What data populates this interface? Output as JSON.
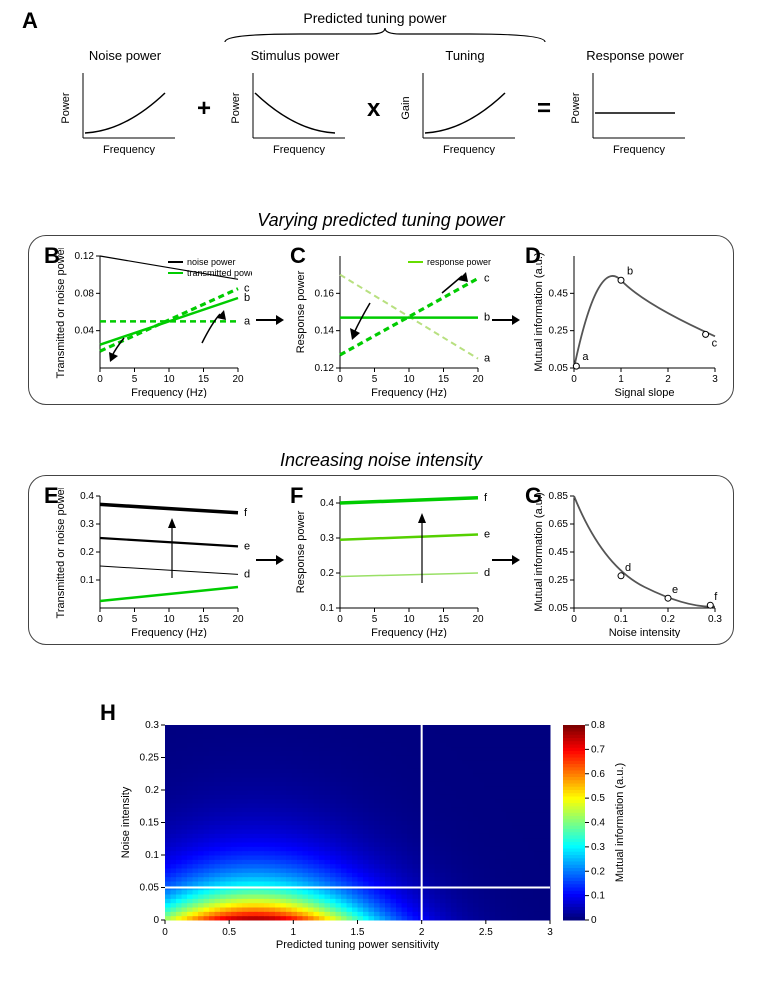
{
  "panelA": {
    "label": "A",
    "top_brace_label": "Predicted tuning power",
    "charts": [
      {
        "title": "Noise power",
        "ylabel": "Power",
        "xlabel": "Frequency",
        "curve": "rising"
      },
      {
        "title": "Stimulus power",
        "ylabel": "Power",
        "xlabel": "Frequency",
        "curve": "falling"
      },
      {
        "title": "Tuning",
        "ylabel": "Gain",
        "xlabel": "Frequency",
        "curve": "rising"
      },
      {
        "title": "Response power",
        "ylabel": "Power",
        "xlabel": "Frequency",
        "curve": "flat"
      }
    ],
    "ops": [
      "+",
      "x",
      "="
    ]
  },
  "section1": {
    "title": "Varying predicted tuning power",
    "panelB": {
      "label": "B",
      "ylabel": "Transmitted or noise power",
      "xlabel": "Frequency (Hz)",
      "xmin": 0,
      "xmax": 20,
      "xticks": [
        0,
        5,
        10,
        15,
        20
      ],
      "ymin": 0,
      "ymax": 0.12,
      "yticks": [
        0.04,
        0.08,
        0.12
      ],
      "legend": [
        {
          "label": "noise power",
          "color": "#000000"
        },
        {
          "label": "transmitted power",
          "color": "#00cc00"
        }
      ],
      "noise_line": {
        "color": "#000000",
        "width": 1.2,
        "y0": 0.12,
        "y1": 0.095
      },
      "green_lines": [
        {
          "style": "dashed",
          "color": "#00cc00",
          "width": 2.5,
          "y0": 0.05,
          "y1": 0.05,
          "tag": "a"
        },
        {
          "style": "solid",
          "color": "#00cc00",
          "width": 2.5,
          "y0": 0.025,
          "y1": 0.075,
          "tag": "b"
        },
        {
          "style": "dashed",
          "color": "#00cc00",
          "width": 3.2,
          "y0": 0.018,
          "y1": 0.085,
          "tag": "c"
        }
      ]
    },
    "panelC": {
      "label": "C",
      "ylabel": "Response power",
      "xlabel": "Frequency (Hz)",
      "xmin": 0,
      "xmax": 20,
      "xticks": [
        0,
        5,
        10,
        15,
        20
      ],
      "ymin": 0.12,
      "ymax": 0.18,
      "yticks": [
        0.12,
        0.14,
        0.16
      ],
      "legend": [
        {
          "label": "response power",
          "color": "#66dd00"
        }
      ],
      "lines": [
        {
          "style": "dashed",
          "color": "#b8e080",
          "width": 2.0,
          "y0": 0.17,
          "y1": 0.125,
          "tag": "a"
        },
        {
          "style": "solid",
          "color": "#00cc00",
          "width": 2.5,
          "y0": 0.147,
          "y1": 0.147,
          "tag": "b"
        },
        {
          "style": "dashed",
          "color": "#00cc00",
          "width": 3.2,
          "y0": 0.127,
          "y1": 0.168,
          "tag": "c"
        }
      ]
    },
    "panelD": {
      "label": "D",
      "ylabel": "Mutual information (a.u.)",
      "xlabel": "Signal slope",
      "xmin": 0,
      "xmax": 3,
      "xticks": [
        0,
        1,
        2,
        3
      ],
      "ymin": 0.05,
      "ymax": 0.65,
      "yticks": [
        0.05,
        0.25,
        0.45
      ],
      "curve_color": "#555555",
      "points": [
        {
          "x": 0.05,
          "y": 0.06,
          "tag": "a"
        },
        {
          "x": 1.0,
          "y": 0.52,
          "tag": "b"
        },
        {
          "x": 2.8,
          "y": 0.23,
          "tag": "c"
        }
      ]
    }
  },
  "section2": {
    "title": "Increasing noise intensity",
    "panelE": {
      "label": "E",
      "ylabel": "Transmitted or noise power",
      "xlabel": "Frequency (Hz)",
      "xmin": 0,
      "xmax": 20,
      "xticks": [
        0,
        5,
        10,
        15,
        20
      ],
      "ymin": 0,
      "ymax": 0.4,
      "yticks": [
        0.1,
        0.2,
        0.3,
        0.4
      ],
      "green_line": {
        "color": "#00cc00",
        "width": 2.5,
        "y0": 0.025,
        "y1": 0.075
      },
      "noise_lines": [
        {
          "color": "#000000",
          "width": 1.0,
          "y0": 0.15,
          "y1": 0.12,
          "tag": "d"
        },
        {
          "color": "#000000",
          "width": 2.2,
          "y0": 0.25,
          "y1": 0.22,
          "tag": "e"
        },
        {
          "color": "#000000",
          "width": 3.5,
          "y0": 0.37,
          "y1": 0.34,
          "tag": "f"
        }
      ]
    },
    "panelF": {
      "label": "F",
      "ylabel": "Response power",
      "xlabel": "Frequency (Hz)",
      "xmin": 0,
      "xmax": 20,
      "xticks": [
        0,
        5,
        10,
        15,
        20
      ],
      "ymin": 0.1,
      "ymax": 0.42,
      "yticks": [
        0.1,
        0.2,
        0.3,
        0.4
      ],
      "lines": [
        {
          "color": "#99e066",
          "width": 1.5,
          "y0": 0.19,
          "y1": 0.2,
          "tag": "d"
        },
        {
          "color": "#55d000",
          "width": 2.5,
          "y0": 0.295,
          "y1": 0.31,
          "tag": "e"
        },
        {
          "color": "#00cc00",
          "width": 3.5,
          "y0": 0.4,
          "y1": 0.415,
          "tag": "f"
        }
      ]
    },
    "panelG": {
      "label": "G",
      "ylabel": "Mutual information (a.u.)",
      "xlabel": "Noise intensity",
      "xmin": 0,
      "xmax": 0.3,
      "xticks": [
        0,
        0.1,
        0.2,
        0.3
      ],
      "ymin": 0.05,
      "ymax": 0.85,
      "yticks": [
        0.05,
        0.25,
        0.45,
        0.65,
        0.85
      ],
      "curve_color": "#555555",
      "points": [
        {
          "x": 0.1,
          "y": 0.28,
          "tag": "d"
        },
        {
          "x": 0.2,
          "y": 0.12,
          "tag": "e"
        },
        {
          "x": 0.29,
          "y": 0.07,
          "tag": "f"
        }
      ]
    }
  },
  "panelH": {
    "label": "H",
    "xlabel": "Predicted tuning power sensitivity",
    "ylabel": "Noise intensity",
    "cbar_label": "Mutual information (a.u.)",
    "xmin": 0,
    "xmax": 3,
    "xticks": [
      0,
      0.5,
      1,
      1.5,
      2,
      2.5,
      3
    ],
    "ymin": 0,
    "ymax": 0.3,
    "yticks": [
      0,
      0.05,
      0.1,
      0.15,
      0.2,
      0.25,
      0.3
    ],
    "cmin": 0,
    "cmax": 0.8,
    "cticks": [
      0,
      0.1,
      0.2,
      0.3,
      0.4,
      0.5,
      0.6,
      0.7,
      0.8
    ],
    "crosshair_x": 2.0,
    "crosshair_y": 0.05,
    "crosshair_color": "#ffffff"
  },
  "colors": {
    "jet": [
      "#00007f",
      "#0000ff",
      "#007fff",
      "#00ffff",
      "#7fff7f",
      "#ffff00",
      "#ff7f00",
      "#ff0000",
      "#7f0000"
    ]
  }
}
